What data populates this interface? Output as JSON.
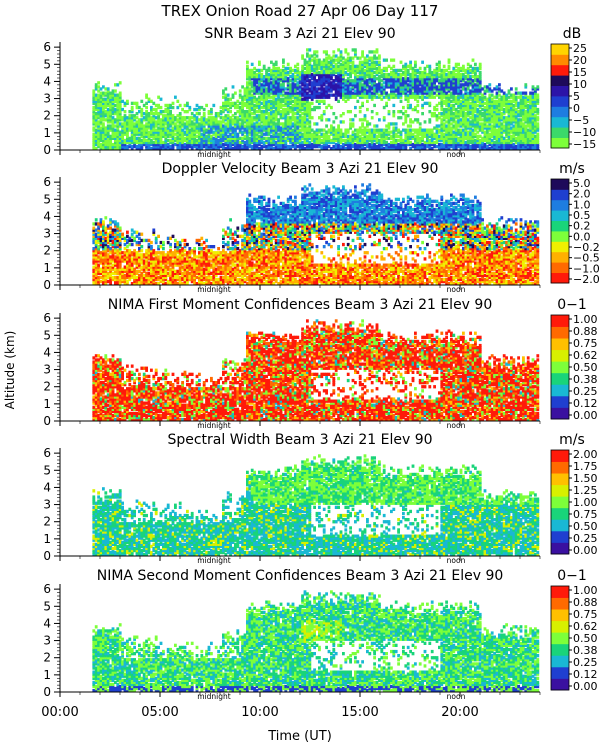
{
  "header": {
    "line1": "TREX Onion Road  27 Apr 06 Day 117"
  },
  "colors": {
    "snr": [
      "#7dff3a",
      "#3bd96a",
      "#19b8d4",
      "#1e7de0",
      "#1f3fd0",
      "#2c14a8",
      "#1e0a5a",
      "#ff1a0a",
      "#ff8a00",
      "#ffd400"
    ],
    "velocity": [
      "#ff1a0a",
      "#ff6a00",
      "#ffb000",
      "#f0f000",
      "#7dff3a",
      "#19d47a",
      "#19b8d4",
      "#1e7de0",
      "#1f3fd0",
      "#1e0a5a"
    ],
    "confidence": [
      "#3a10a0",
      "#1f3fd0",
      "#19b8d4",
      "#19d47a",
      "#7dff3a",
      "#d8f000",
      "#ffc000",
      "#ff6a00",
      "#ff1a0a"
    ],
    "width": [
      "#3a10a0",
      "#1f3fd0",
      "#19b8d4",
      "#19d47a",
      "#7dff3a",
      "#d8f000",
      "#ffc000",
      "#ff6a00",
      "#ff1a0a"
    ]
  },
  "chart_data": [
    {
      "type": "heatmap",
      "title": "SNR Beam 3 Azi  21 Elev 90",
      "unit": "dB",
      "colorbar_ticks": [
        "25",
        "20",
        "15",
        "10",
        "5",
        "0",
        "−5",
        "−10",
        "−15"
      ],
      "palette": "snr",
      "style": "snr",
      "ylabel": "Altitude (km)",
      "yticks": [
        "0",
        "1",
        "2",
        "3",
        "4",
        "5",
        "6"
      ],
      "ylim": [
        0,
        6.3
      ],
      "xlim": [
        0,
        24
      ],
      "markers": [
        "midnight",
        "noon"
      ],
      "marker_hours": [
        7.7,
        19.8
      ]
    },
    {
      "type": "heatmap",
      "title": "Doppler Velocity Beam 3 Azi  21 Elev 90",
      "unit": "m/s",
      "colorbar_ticks": [
        "5.0",
        "2.0",
        "1.0",
        "0.5",
        "0.2",
        "0.0",
        "−0.2",
        "−0.5",
        "−1.0",
        "−2.0"
      ],
      "palette": "velocity",
      "style": "velocity",
      "ylabel": "Altitude (km)",
      "yticks": [
        "0",
        "1",
        "2",
        "3",
        "4",
        "5",
        "6"
      ],
      "ylim": [
        0,
        6.3
      ],
      "xlim": [
        0,
        24
      ],
      "markers": [
        "midnight",
        "noon"
      ],
      "marker_hours": [
        7.7,
        19.8
      ]
    },
    {
      "type": "heatmap",
      "title": "NIMA First Moment Confidences Beam 3 Azi  21 Elev 90",
      "unit": "0−1",
      "colorbar_ticks": [
        "1.00",
        "0.88",
        "0.75",
        "0.62",
        "0.50",
        "0.38",
        "0.25",
        "0.12",
        "0.00"
      ],
      "palette": "confidence",
      "style": "conf1",
      "ylabel": "Altitude (km)",
      "yticks": [
        "0",
        "1",
        "2",
        "3",
        "4",
        "5",
        "6"
      ],
      "ylim": [
        0,
        6.3
      ],
      "xlim": [
        0,
        24
      ],
      "markers": [
        "midnight",
        "noon"
      ],
      "marker_hours": [
        7.7,
        19.8
      ]
    },
    {
      "type": "heatmap",
      "title": "Spectral Width Beam 3 Azi  21 Elev 90",
      "unit": "m/s",
      "colorbar_ticks": [
        "2.00",
        "1.75",
        "1.50",
        "1.25",
        "1.00",
        "0.75",
        "0.50",
        "0.25",
        "0.00"
      ],
      "palette": "width",
      "style": "width",
      "ylabel": "Altitude (km)",
      "yticks": [
        "0",
        "1",
        "2",
        "3",
        "4",
        "5",
        "6"
      ],
      "ylim": [
        0,
        6.3
      ],
      "xlim": [
        0,
        24
      ],
      "markers": [
        "midnight",
        "noon"
      ],
      "marker_hours": [
        7.7,
        19.8
      ]
    },
    {
      "type": "heatmap",
      "title": "NIMA Second Moment Confidences Beam 3 Azi  21 Elev 90",
      "unit": "0−1",
      "colorbar_ticks": [
        "1.00",
        "0.88",
        "0.75",
        "0.62",
        "0.50",
        "0.38",
        "0.25",
        "0.12",
        "0.00"
      ],
      "palette": "confidence",
      "style": "conf2",
      "ylabel": "Altitude (km)",
      "yticks": [
        "0",
        "1",
        "2",
        "3",
        "4",
        "5",
        "6"
      ],
      "ylim": [
        0,
        6.3
      ],
      "xlim": [
        0,
        24
      ],
      "markers": [
        "midnight",
        "noon"
      ],
      "marker_hours": [
        7.7,
        19.8
      ],
      "xlabel": "Time (UT)",
      "xticks": [
        "00:00",
        "05:00",
        "10:00",
        "15:00",
        "20:00"
      ],
      "xtick_hours": [
        0,
        5,
        10,
        15,
        20
      ]
    }
  ],
  "shared": {
    "ylabel": "Altitude (km)",
    "xlabel": "Time (UT)"
  }
}
